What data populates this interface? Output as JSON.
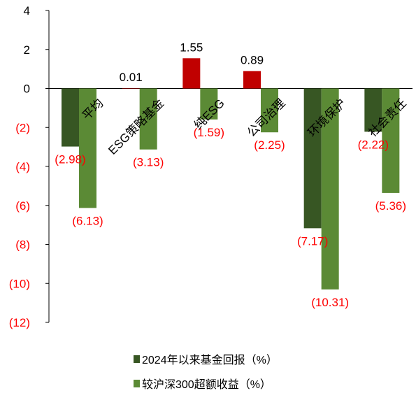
{
  "chart_data": {
    "type": "bar",
    "categories": [
      "平均",
      "ESG策略基金",
      "纯ESG",
      "公司治理",
      "环境保护",
      "社会责任"
    ],
    "series": [
      {
        "name": "2024年以来基金回报（%）",
        "values": [
          -2.98,
          0.01,
          1.55,
          0.89,
          -7.17,
          -2.22
        ],
        "labels": [
          "(2.98)",
          "0.01",
          "1.55",
          "0.89",
          "(7.17)",
          "(2.22)"
        ]
      },
      {
        "name": "较沪深300超额收益（%）",
        "values": [
          -6.13,
          -3.13,
          -1.59,
          -2.25,
          -10.31,
          -5.36
        ],
        "labels": [
          "(6.13)",
          "(3.13)",
          "(1.59)",
          "(2.25)",
          "(10.31)",
          "(5.36)"
        ]
      }
    ],
    "ylim": [
      -12,
      4
    ],
    "yticks": [
      4,
      2,
      0,
      -2,
      -4,
      -6,
      -8,
      -10,
      -12
    ],
    "ytick_labels": [
      "4",
      "2",
      "0",
      "(2)",
      "(4)",
      "(6)",
      "(8)",
      "(10)",
      "(12)"
    ],
    "grid": false,
    "legend_position": "bottom",
    "colors": {
      "series1": "#375623",
      "series1_positive": "#c00000",
      "series2": "#5b8a35",
      "negative_label": "#ff0000",
      "positive_label": "#000000",
      "axis": "#000000"
    }
  }
}
